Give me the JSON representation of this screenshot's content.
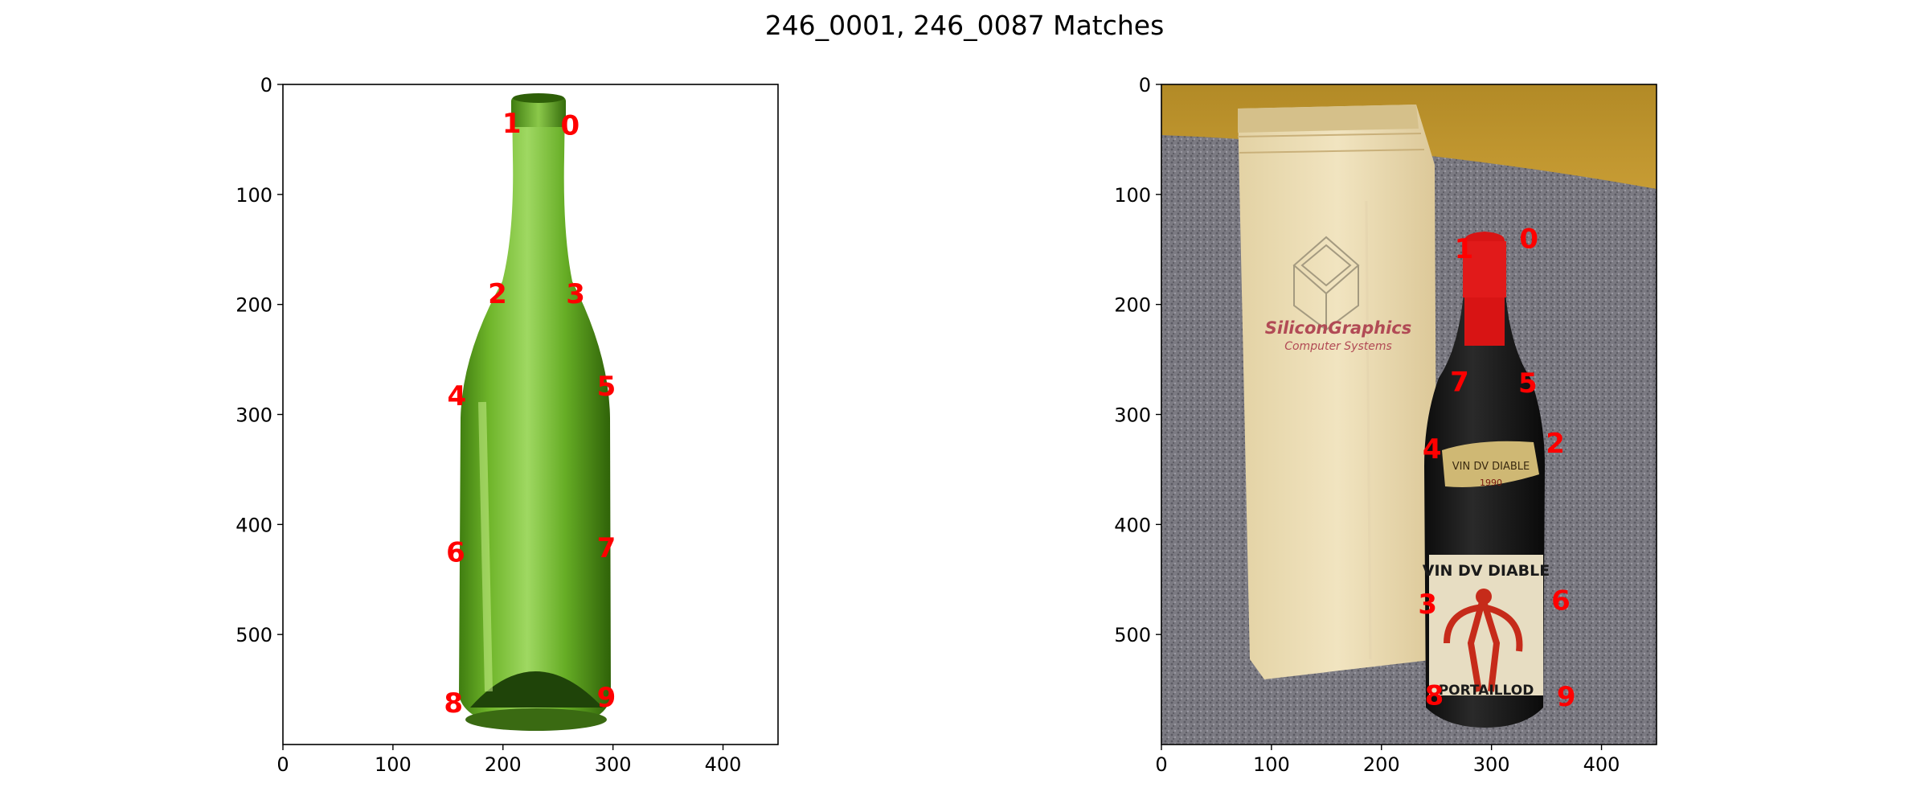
{
  "figure": {
    "title": "246_0001, 246_0087 Matches"
  },
  "colors": {
    "marker": "#ff0000",
    "axis": "#000000"
  },
  "chart_data": [
    {
      "type": "scatter",
      "image": "green glass wine bottle on white background",
      "xlim": [
        0,
        450
      ],
      "ylim": [
        600,
        0
      ],
      "xticks": [
        0,
        100,
        200,
        300,
        400
      ],
      "yticks": [
        0,
        100,
        200,
        300,
        400,
        500
      ],
      "points": [
        {
          "label": "0",
          "x": 261,
          "y": 37
        },
        {
          "label": "1",
          "x": 208,
          "y": 35
        },
        {
          "label": "2",
          "x": 195,
          "y": 190
        },
        {
          "label": "3",
          "x": 266,
          "y": 190
        },
        {
          "label": "4",
          "x": 158,
          "y": 283
        },
        {
          "label": "5",
          "x": 294,
          "y": 274
        },
        {
          "label": "6",
          "x": 157,
          "y": 425
        },
        {
          "label": "7",
          "x": 294,
          "y": 421
        },
        {
          "label": "8",
          "x": 155,
          "y": 562
        },
        {
          "label": "9",
          "x": 294,
          "y": 557
        }
      ]
    },
    {
      "type": "scatter",
      "image": "wine bottle with red capsule beside wooden SiliconGraphics box on grey carpet",
      "xlim": [
        0,
        450
      ],
      "ylim": [
        600,
        0
      ],
      "xticks": [
        0,
        100,
        200,
        300,
        400
      ],
      "yticks": [
        0,
        100,
        200,
        300,
        400,
        500
      ],
      "points": [
        {
          "label": "0",
          "x": 334,
          "y": 140
        },
        {
          "label": "1",
          "x": 275,
          "y": 149
        },
        {
          "label": "2",
          "x": 358,
          "y": 326
        },
        {
          "label": "3",
          "x": 242,
          "y": 472
        },
        {
          "label": "4",
          "x": 246,
          "y": 331
        },
        {
          "label": "5",
          "x": 333,
          "y": 271
        },
        {
          "label": "6",
          "x": 363,
          "y": 469
        },
        {
          "label": "7",
          "x": 271,
          "y": 270
        },
        {
          "label": "8",
          "x": 248,
          "y": 555
        },
        {
          "label": "9",
          "x": 368,
          "y": 556
        }
      ]
    }
  ],
  "box_logo": {
    "brand": "SiliconGraphics",
    "sub": "Computer Systems"
  },
  "bottle_label": {
    "neck": "VIN DV DIABLE",
    "year": "1990",
    "body": "VIN DV DIABLE",
    "bottom": "PORTAILLOD"
  }
}
